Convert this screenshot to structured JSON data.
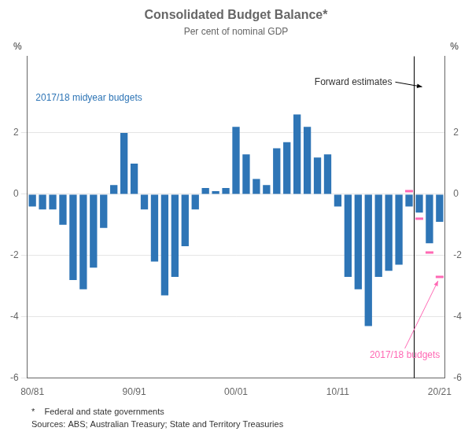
{
  "chart_data": {
    "type": "bar",
    "title": "Consolidated Budget Balance*",
    "subtitle": "Per cent of nominal GDP",
    "ylabel": "%",
    "y2label": "%",
    "footnotes": [
      "*    Federal and state governments",
      "Sources: ABS; Australian Treasury; State and Territory Treasuries"
    ],
    "categories": [
      "80/81",
      null,
      null,
      null,
      null,
      null,
      null,
      null,
      null,
      null,
      "90/91",
      null,
      null,
      null,
      null,
      null,
      null,
      null,
      null,
      null,
      "00/01",
      null,
      null,
      null,
      null,
      null,
      null,
      null,
      null,
      null,
      "10/11",
      null,
      null,
      null,
      null,
      null,
      null,
      null,
      null,
      null,
      "20/21"
    ],
    "series": [
      {
        "type": "bar",
        "color": "#2E75B6",
        "values": [
          -0.4,
          -0.5,
          -0.5,
          -1.0,
          -2.8,
          -3.1,
          -2.4,
          -1.1,
          0.3,
          2.0,
          1.0,
          -0.5,
          -2.2,
          -3.3,
          -2.7,
          -1.7,
          -0.5,
          0.2,
          0.1,
          0.2,
          2.2,
          1.3,
          0.5,
          0.3,
          1.5,
          1.7,
          2.6,
          2.2,
          1.2,
          1.3,
          -0.4,
          -2.7,
          -3.1,
          -4.3,
          -2.7,
          -2.5,
          -2.3,
          -0.4,
          -0.6,
          -1.6,
          -0.9
        ]
      },
      {
        "type": "line",
        "color": "#FF69B4",
        "marker": "line",
        "line_style": "none",
        "values": [
          null,
          null,
          null,
          null,
          null,
          null,
          null,
          null,
          null,
          null,
          null,
          null,
          null,
          null,
          null,
          null,
          null,
          null,
          null,
          null,
          null,
          null,
          null,
          null,
          null,
          null,
          null,
          null,
          null,
          null,
          null,
          null,
          null,
          null,
          null,
          null,
          null,
          0.1,
          -0.8,
          -1.9,
          -2.7
        ]
      }
    ],
    "ylim": [
      -6,
      4.5
    ],
    "yticks": [
      -6,
      -4,
      -2,
      0,
      2
    ],
    "y2lim": [
      -6,
      4.5
    ],
    "y2ticks": [
      -6,
      -4,
      -2,
      0,
      2
    ],
    "grid": "y",
    "annotations": [
      {
        "text": "2017/18 midyear budgets",
        "color": "#2E75B6"
      },
      {
        "text": "Forward estimates",
        "x": 37.5
      },
      {
        "text": "2017/18 budgets",
        "color": "#FF69B4"
      }
    ]
  }
}
